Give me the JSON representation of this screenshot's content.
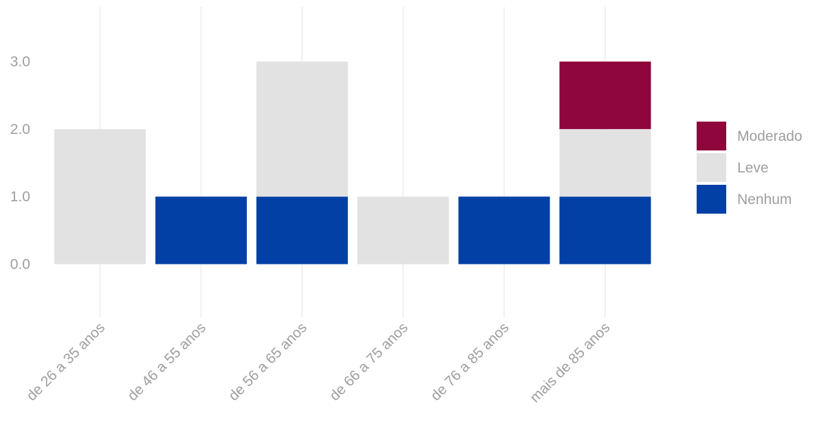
{
  "chart_data": {
    "type": "bar",
    "stacked": true,
    "categories": [
      "de 26 a 35 anos",
      "de 46 a 55 anos",
      "de 56 a 65 anos",
      "de 66 a 75 anos",
      "de 76 a 85 anos",
      "mais de 85 anos"
    ],
    "series": [
      {
        "name": "Nenhum",
        "color": "#0340a5",
        "values": [
          0,
          1,
          1,
          0,
          1,
          1
        ]
      },
      {
        "name": "Leve",
        "color": "#e2e2e2",
        "values": [
          2,
          0,
          2,
          1,
          0,
          1
        ]
      },
      {
        "name": "Moderado",
        "color": "#8e063b",
        "values": [
          0,
          0,
          0,
          0,
          0,
          1
        ]
      }
    ],
    "y_ticks": [
      "0.0",
      "1.0",
      "2.0",
      "3.0"
    ],
    "ylim": [
      -0.75,
      3.8
    ],
    "grid": "vertical-only",
    "legend_position": "right",
    "legend_order": [
      "Moderado",
      "Leve",
      "Nenhum"
    ],
    "title": "",
    "xlabel": "",
    "ylabel": ""
  }
}
